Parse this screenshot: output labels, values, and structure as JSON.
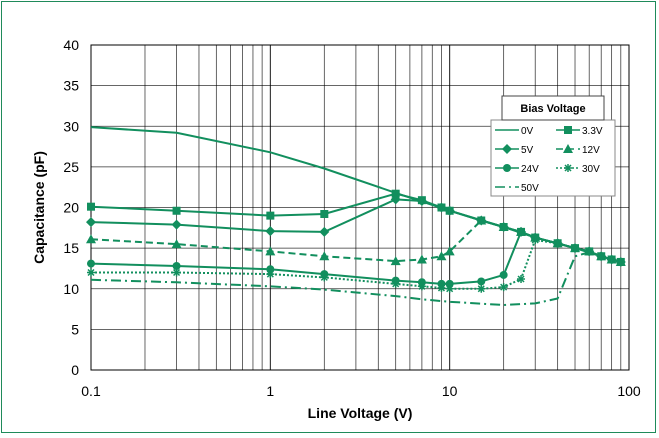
{
  "colors": {
    "series": "#128f5e",
    "grid": "#000000",
    "frame": "#1f8a5a"
  },
  "chart_data": {
    "type": "line",
    "title": "",
    "xlabel": "Line Voltage (V)",
    "ylabel": "Capacitance (pF)",
    "xscale": "log",
    "xlim": [
      0.1,
      100
    ],
    "ylim": [
      0,
      40
    ],
    "x_tick_labels": [
      "0.1",
      "1",
      "10",
      "100"
    ],
    "y_tick_labels": [
      "0",
      "5",
      "10",
      "15",
      "20",
      "25",
      "30",
      "35",
      "40"
    ],
    "grid": true,
    "legend": {
      "title": "Bias Voltage",
      "placement": "right",
      "columns": 2
    },
    "series": [
      {
        "name": "0V",
        "marker": "none",
        "dash": "solid",
        "x": [
          0.1,
          0.3,
          1,
          2,
          5,
          10,
          20,
          30,
          50,
          70,
          90
        ],
        "y": [
          29.9,
          29.2,
          26.8,
          24.8,
          21.8,
          19.6,
          17.6,
          16.3,
          15.0,
          14.0,
          13.3
        ]
      },
      {
        "name": "3.3V",
        "marker": "square",
        "dash": "solid",
        "x": [
          0.1,
          0.3,
          1,
          2,
          5,
          7,
          9,
          10,
          15,
          20,
          25,
          30,
          40,
          50,
          60,
          70,
          80,
          90
        ],
        "y": [
          20.1,
          19.6,
          19.0,
          19.2,
          21.7,
          20.9,
          20.0,
          19.6,
          18.4,
          17.6,
          17.0,
          16.3,
          15.6,
          15.0,
          14.6,
          14.0,
          13.6,
          13.3
        ]
      },
      {
        "name": "5V",
        "marker": "diamond",
        "dash": "solid",
        "x": [
          0.1,
          0.3,
          1,
          2,
          5,
          7,
          9,
          10,
          15,
          20,
          25,
          30,
          40,
          50,
          60,
          70,
          80,
          90
        ],
        "y": [
          18.2,
          17.9,
          17.1,
          17.0,
          21.0,
          20.8,
          20.0,
          19.6,
          18.4,
          17.6,
          17.0,
          16.3,
          15.6,
          15.0,
          14.6,
          14.0,
          13.6,
          13.3
        ]
      },
      {
        "name": "12V",
        "marker": "triangle",
        "dash": "dashed",
        "x": [
          0.1,
          0.3,
          1,
          2,
          5,
          7,
          9,
          10,
          15,
          20,
          25,
          30,
          40,
          50,
          60,
          70,
          80,
          90
        ],
        "y": [
          16.1,
          15.5,
          14.6,
          14.0,
          13.4,
          13.6,
          14.0,
          14.6,
          18.4,
          17.6,
          17.0,
          16.3,
          15.6,
          15.0,
          14.6,
          14.0,
          13.6,
          13.3
        ]
      },
      {
        "name": "24V",
        "marker": "circle",
        "dash": "solid",
        "x": [
          0.1,
          0.3,
          1,
          2,
          5,
          7,
          9,
          10,
          15,
          20,
          25,
          30,
          40,
          50,
          60,
          70,
          80,
          90
        ],
        "y": [
          13.1,
          12.8,
          12.4,
          11.8,
          11.0,
          10.8,
          10.6,
          10.6,
          10.9,
          11.7,
          17.0,
          16.3,
          15.6,
          15.0,
          14.6,
          14.0,
          13.6,
          13.3
        ]
      },
      {
        "name": "30V",
        "marker": "asterisk",
        "dash": "dotted",
        "x": [
          0.1,
          0.3,
          1,
          2,
          5,
          7,
          9,
          10,
          15,
          20,
          25,
          30,
          40,
          50,
          60,
          70,
          80,
          90
        ],
        "y": [
          12.0,
          12.0,
          11.8,
          11.4,
          10.6,
          10.3,
          10.1,
          10.0,
          10.0,
          10.2,
          11.2,
          16.0,
          15.6,
          15.0,
          14.6,
          14.0,
          13.6,
          13.3
        ]
      },
      {
        "name": "50V",
        "marker": "none",
        "dash": "dashdot",
        "x": [
          0.1,
          0.3,
          1,
          2,
          5,
          7,
          10,
          20,
          30,
          40,
          50,
          60,
          70,
          80,
          90
        ],
        "y": [
          11.1,
          10.8,
          10.3,
          9.9,
          9.1,
          8.7,
          8.4,
          8.0,
          8.2,
          8.8,
          14.0,
          14.5,
          14.0,
          13.6,
          13.3
        ]
      }
    ]
  }
}
